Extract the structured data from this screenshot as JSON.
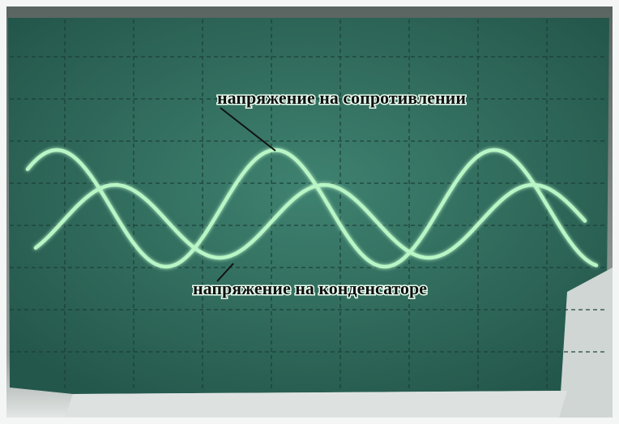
{
  "annotations": [
    {
      "label": "напряжение на сопротивлении"
    },
    {
      "label": "напряжение на конденсаторе"
    }
  ]
}
